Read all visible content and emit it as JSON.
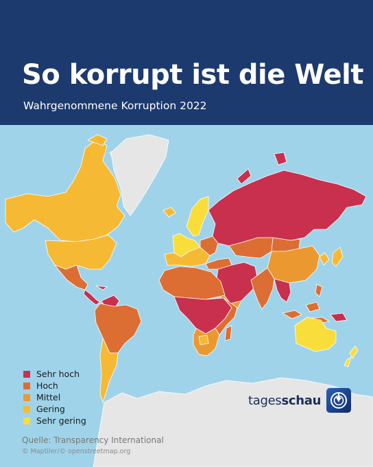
{
  "header": {
    "title": "So korrupt ist die Welt",
    "subtitle": "Wahrgenommene Korruption 2022"
  },
  "legend": {
    "items": [
      {
        "label": "Sehr hoch",
        "color": "#c8304e"
      },
      {
        "label": "Hoch",
        "color": "#dd6e33"
      },
      {
        "label": "Mittel",
        "color": "#ec9830"
      },
      {
        "label": "Gering",
        "color": "#f6b934"
      },
      {
        "label": "Sehr gering",
        "color": "#f9dd3a"
      }
    ]
  },
  "colors": {
    "header_bg": "#1c3a6e",
    "ocean": "#9fd3ea",
    "no_data": "#e6e6e6",
    "border": "#ffffff"
  },
  "brand": {
    "name_regular": "tages",
    "name_bold": "schau",
    "logo_icon": "tagesschau-globe-icon"
  },
  "footer": {
    "source": "Quelle: Transparency International",
    "attribution": "© Maptiler/© openstreetmap.org"
  }
}
